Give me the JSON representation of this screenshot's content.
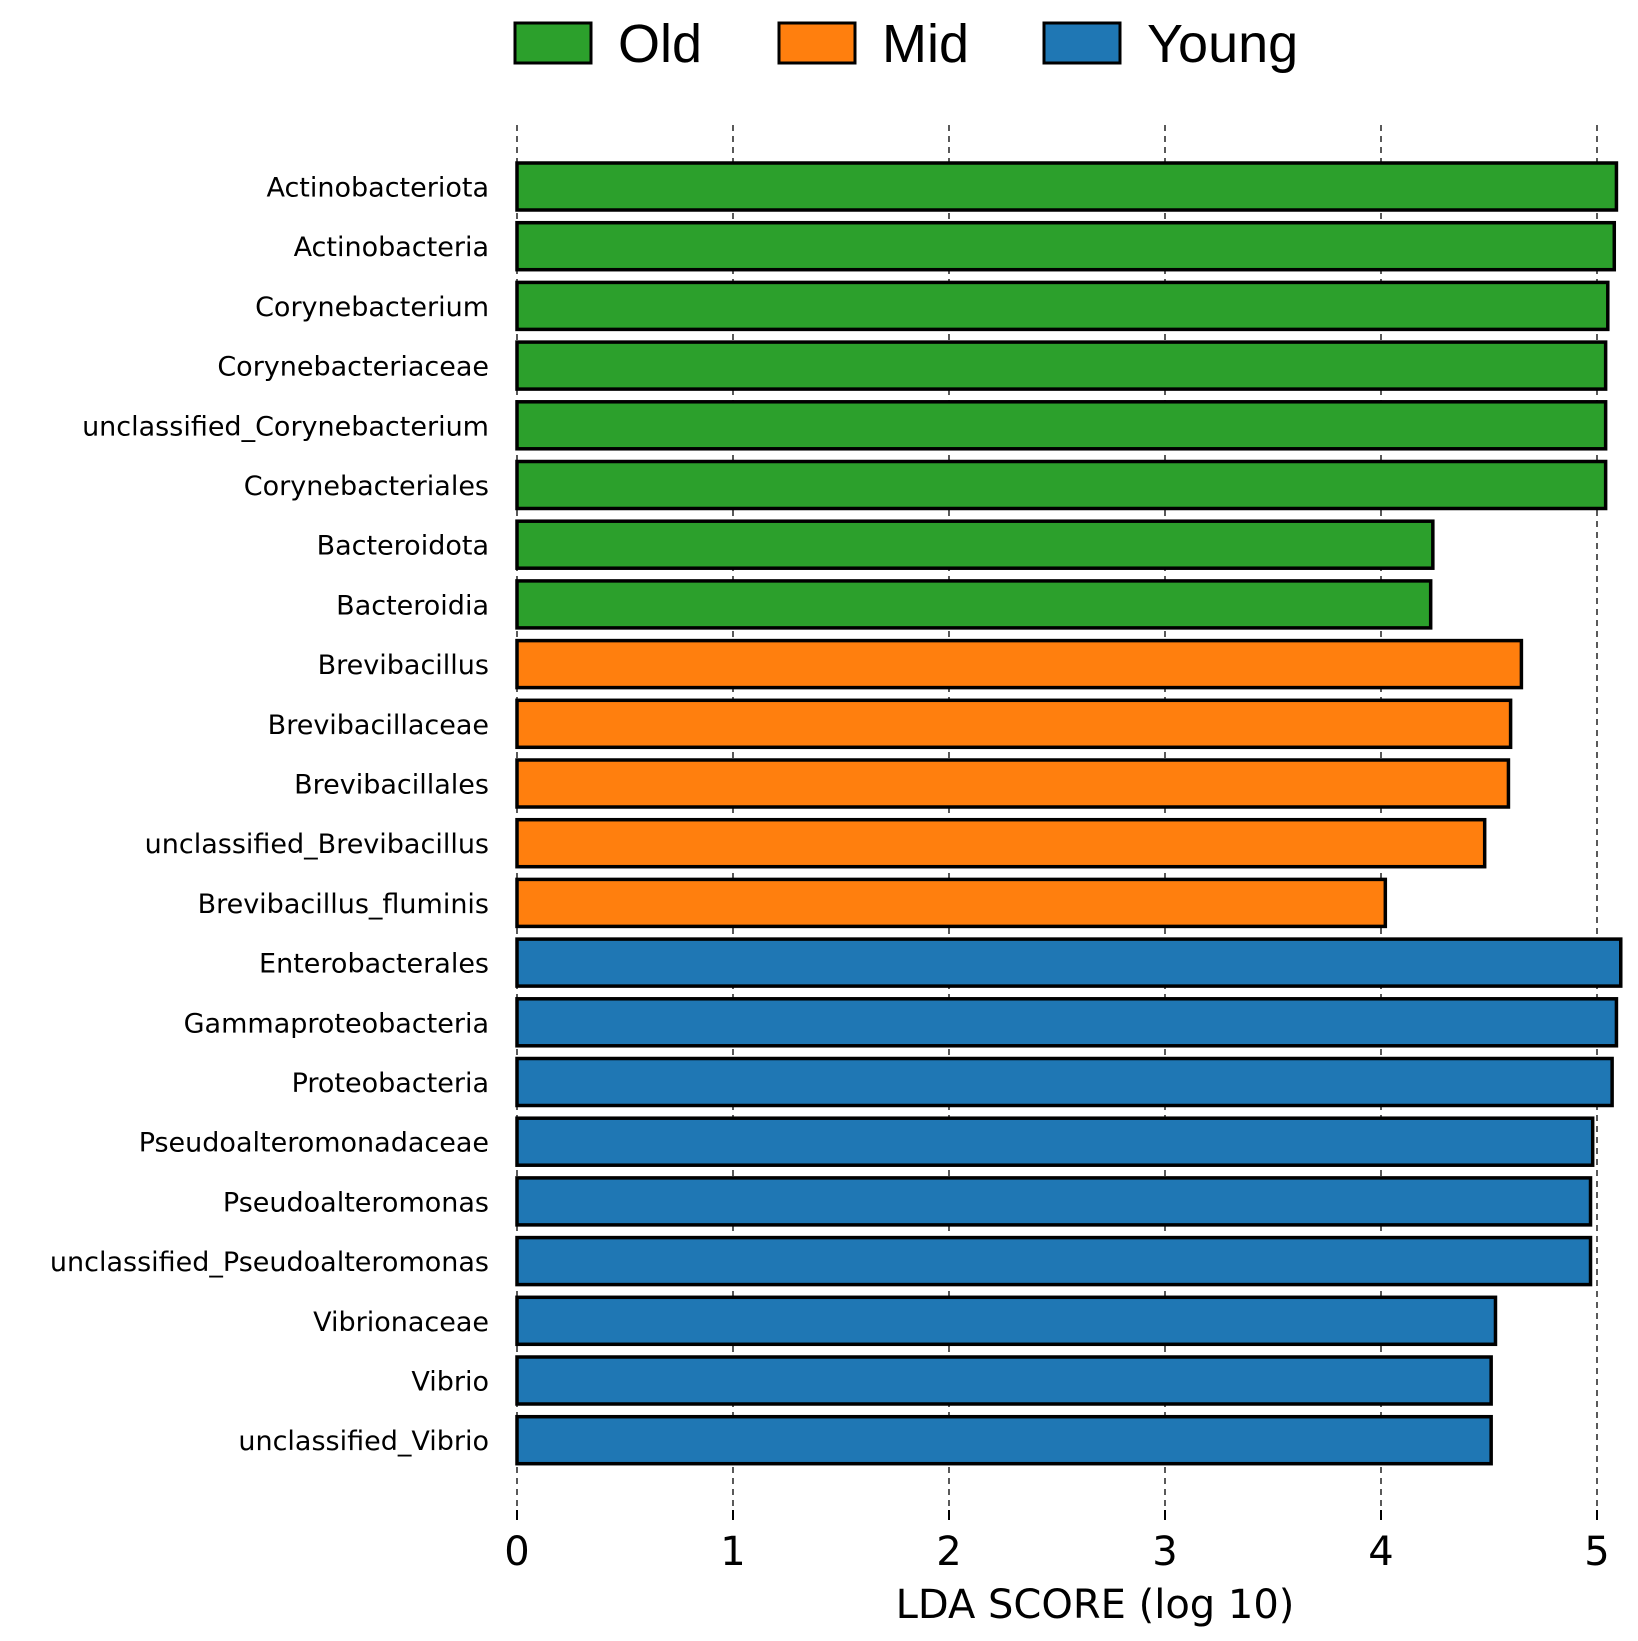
{
  "chart_data": {
    "type": "bar",
    "orientation": "horizontal",
    "title": "",
    "xlabel": "LDA SCORE (log 10)",
    "ylabel": "",
    "xlim": [
      0,
      5
    ],
    "xticks": [
      "0",
      "1",
      "2",
      "3",
      "4",
      "5"
    ],
    "grid": "vertical dashed lines at each x tick",
    "legend_position": "top-center",
    "legend": [
      {
        "name": "Old",
        "color": "#2ca02c"
      },
      {
        "name": "Mid",
        "color": "#ff7f0e"
      },
      {
        "name": "Young",
        "color": "#1f77b4"
      }
    ],
    "categories": [
      "Actinobacteriota",
      "Actinobacteria",
      "Corynebacterium",
      "Corynebacteriaceae",
      "unclassified_Corynebacterium",
      "Corynebacteriales",
      "Bacteroidota",
      "Bacteroidia",
      "Brevibacillus",
      "Brevibacillaceae",
      "Brevibacillales",
      "unclassified_Brevibacillus",
      "Brevibacillus_fluminis",
      "Enterobacterales",
      "Gammaproteobacteria",
      "Proteobacteria",
      "Pseudoalteromonadaceae",
      "Pseudoalteromonas",
      "unclassified_Pseudoalteromonas",
      "Vibrionaceae",
      "Vibrio",
      "unclassified_Vibrio"
    ],
    "groups": [
      "Old",
      "Old",
      "Old",
      "Old",
      "Old",
      "Old",
      "Old",
      "Old",
      "Mid",
      "Mid",
      "Mid",
      "Mid",
      "Mid",
      "Young",
      "Young",
      "Young",
      "Young",
      "Young",
      "Young",
      "Young",
      "Young",
      "Young"
    ],
    "values": [
      5.09,
      5.08,
      5.05,
      5.04,
      5.04,
      5.04,
      4.24,
      4.23,
      4.65,
      4.6,
      4.59,
      4.48,
      4.02,
      5.11,
      5.09,
      5.07,
      4.98,
      4.97,
      4.97,
      4.53,
      4.51,
      4.51
    ]
  }
}
